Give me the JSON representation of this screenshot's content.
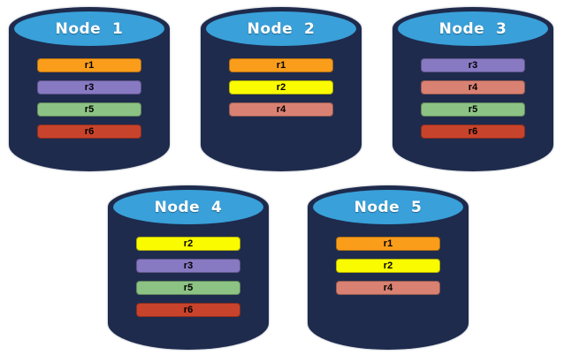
{
  "colors": {
    "background": "#FFFFFF",
    "cylinder_body": "#1E2B4D",
    "cylinder_top": "#39A0D9",
    "title_text": "#FFFFFF",
    "bar_text": "#000000"
  },
  "replica_colors": {
    "r1": "#FA9D1B",
    "r2": "#FBFB00",
    "r3": "#8879C3",
    "r4": "#D98172",
    "r5": "#8CC283",
    "r6": "#C8432B"
  },
  "nodes": [
    {
      "label": "Node  1",
      "replicas": [
        "r1",
        "r3",
        "r5",
        "r6"
      ]
    },
    {
      "label": "Node  2",
      "replicas": [
        "r1",
        "r2",
        "r4"
      ]
    },
    {
      "label": "Node  3",
      "replicas": [
        "r3",
        "r4",
        "r5",
        "r6"
      ]
    },
    {
      "label": "Node  4",
      "replicas": [
        "r2",
        "r3",
        "r5",
        "r6"
      ]
    },
    {
      "label": "Node  5",
      "replicas": [
        "r1",
        "r2",
        "r4"
      ]
    }
  ]
}
